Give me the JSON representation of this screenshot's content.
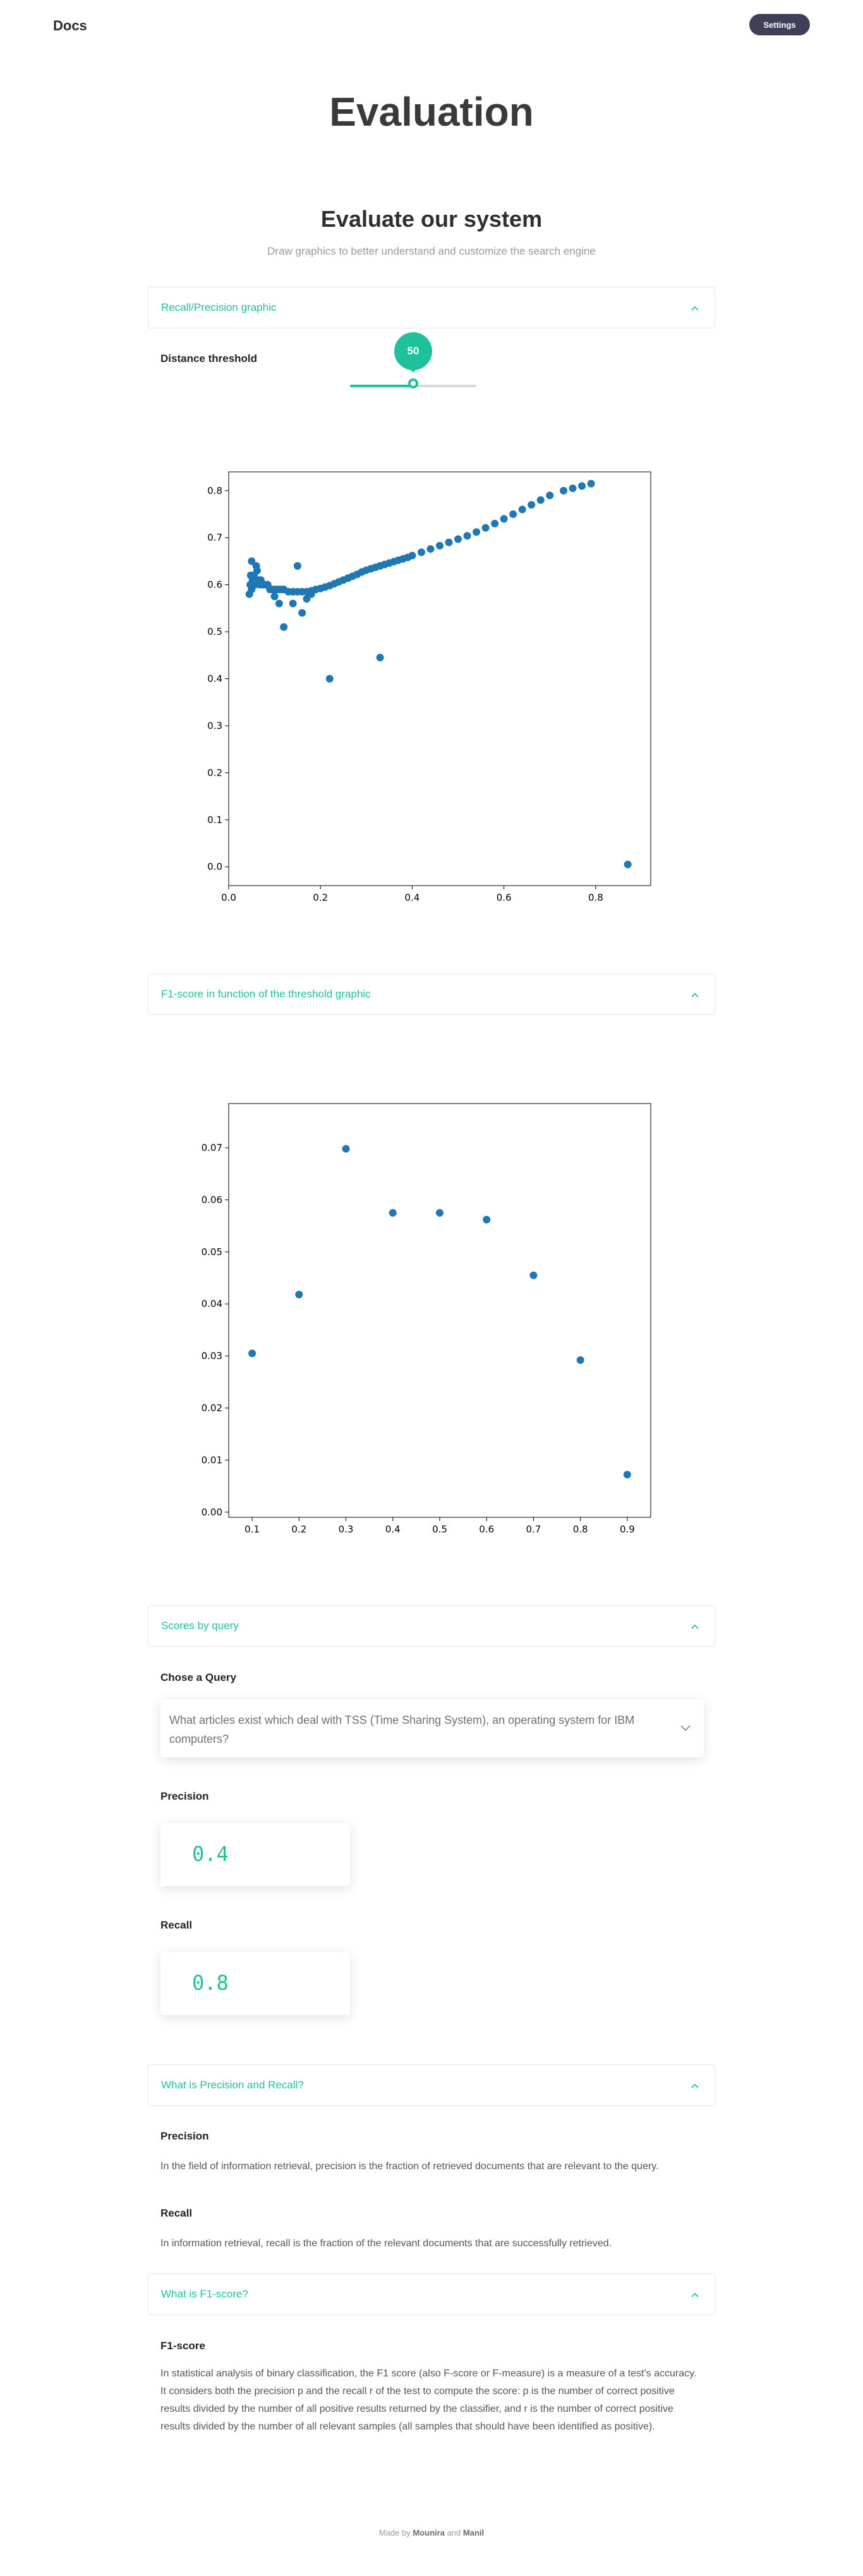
{
  "header": {
    "brand": "Docs",
    "settings_label": "Settings"
  },
  "page_title": "Evaluation",
  "section": {
    "title": "Evaluate our system",
    "subtitle": "Draw graphics to better understand and customize the search engine"
  },
  "accordions": {
    "recall_precision": "Recall/Precision graphic",
    "f1_threshold": "F1-score in function of the threshold graphic",
    "scores_by_query": "Scores by query",
    "what_pr": "What is Precision and Recall?",
    "what_f1": "What is F1-score?"
  },
  "slider": {
    "label": "Distance threshold",
    "value": "50",
    "min": 0,
    "max": 100,
    "position_fraction": 0.5
  },
  "query": {
    "label": "Chose a Query",
    "selected": "What articles exist which deal with TSS (Time Sharing System), an operating system for IBM computers?"
  },
  "scores": {
    "precision_label": "Precision",
    "precision_value": "0.4",
    "recall_label": "Recall",
    "recall_value": "0.8"
  },
  "explanations": {
    "precision_heading": "Precision",
    "precision_text": "In the field of information retrieval, precision is the fraction of retrieved documents that are relevant to the query.",
    "recall_heading": "Recall",
    "recall_text": "In information retrieval, recall is the fraction of the relevant documents that are successfully retrieved.",
    "f1_heading": "F1-score",
    "f1_text": "In statistical analysis of binary classification, the F1 score (also F-score or F-measure) is a measure of a test's accuracy. It considers both the precision p and the recall r of the test to compute the score: p is the number of correct positive results divided by the number of all positive results returned by the classifier, and r is the number of correct positive results divided by the number of all relevant samples (all samples that should have been identified as positive)."
  },
  "footer": {
    "prefix": "Made by",
    "author1": "Mounira",
    "and": "and",
    "author2": "Manil"
  },
  "colors": {
    "accent": "#1fc19a",
    "point": "#1f77b4",
    "dark_button": "#403f5a"
  },
  "icons": {
    "accordion_toggle": "chevron-up-icon",
    "select_toggle": "chevron-down-icon"
  },
  "chart_data": [
    {
      "type": "scatter",
      "title": "",
      "xlabel": "",
      "ylabel": "",
      "xlim": [
        0,
        0.92
      ],
      "ylim": [
        -0.04,
        0.84
      ],
      "xticks": [
        0.0,
        0.2,
        0.4,
        0.6,
        0.8
      ],
      "yticks": [
        0.0,
        0.1,
        0.2,
        0.3,
        0.4,
        0.5,
        0.6,
        0.7,
        0.8
      ],
      "grid": false,
      "series": [
        {
          "x": [
            0.045,
            0.047,
            0.048,
            0.05,
            0.05,
            0.052,
            0.053,
            0.055,
            0.057,
            0.06,
            0.062,
            0.065,
            0.068,
            0.07,
            0.075,
            0.08,
            0.085,
            0.09,
            0.095,
            0.1,
            0.105,
            0.11,
            0.115,
            0.12,
            0.13,
            0.14,
            0.15,
            0.16,
            0.17,
            0.18,
            0.19,
            0.2,
            0.21,
            0.22,
            0.23,
            0.24,
            0.25,
            0.26,
            0.27,
            0.28,
            0.29,
            0.3,
            0.31,
            0.32,
            0.33,
            0.34,
            0.35,
            0.36,
            0.37,
            0.38,
            0.39,
            0.4,
            0.42,
            0.44,
            0.46,
            0.48,
            0.5,
            0.52,
            0.54,
            0.56,
            0.58,
            0.6,
            0.62,
            0.64,
            0.66,
            0.68,
            0.7,
            0.73,
            0.75,
            0.77,
            0.79,
            0.1,
            0.11,
            0.12,
            0.14,
            0.15,
            0.16,
            0.17,
            0.18,
            0.22,
            0.33,
            0.87
          ],
          "y": [
            0.58,
            0.6,
            0.62,
            0.65,
            0.59,
            0.61,
            0.6,
            0.62,
            0.6,
            0.64,
            0.63,
            0.61,
            0.6,
            0.61,
            0.6,
            0.6,
            0.6,
            0.59,
            0.59,
            0.59,
            0.59,
            0.59,
            0.59,
            0.59,
            0.585,
            0.585,
            0.585,
            0.585,
            0.585,
            0.587,
            0.59,
            0.592,
            0.595,
            0.598,
            0.602,
            0.606,
            0.61,
            0.614,
            0.618,
            0.622,
            0.627,
            0.631,
            0.634,
            0.637,
            0.64,
            0.643,
            0.646,
            0.649,
            0.652,
            0.655,
            0.658,
            0.662,
            0.669,
            0.676,
            0.683,
            0.69,
            0.697,
            0.704,
            0.712,
            0.721,
            0.73,
            0.74,
            0.75,
            0.76,
            0.77,
            0.78,
            0.79,
            0.8,
            0.805,
            0.81,
            0.815,
            0.575,
            0.56,
            0.51,
            0.56,
            0.64,
            0.54,
            0.57,
            0.58,
            0.4,
            0.445,
            0.005
          ]
        }
      ]
    },
    {
      "type": "scatter",
      "title": "",
      "xlabel": "",
      "ylabel": "",
      "xlim": [
        0.05,
        0.95
      ],
      "ylim": [
        -0.001,
        0.0785
      ],
      "xticks": [
        0.1,
        0.2,
        0.3,
        0.4,
        0.5,
        0.6,
        0.7,
        0.8,
        0.9
      ],
      "yticks": [
        0.0,
        0.01,
        0.02,
        0.03,
        0.04,
        0.05,
        0.06,
        0.07
      ],
      "grid": false,
      "series": [
        {
          "x": [
            0.1,
            0.2,
            0.3,
            0.4,
            0.5,
            0.6,
            0.7,
            0.8,
            0.9
          ],
          "y": [
            0.0305,
            0.0418,
            0.0698,
            0.0575,
            0.0575,
            0.0562,
            0.0455,
            0.0292,
            0.0072
          ]
        }
      ]
    }
  ]
}
